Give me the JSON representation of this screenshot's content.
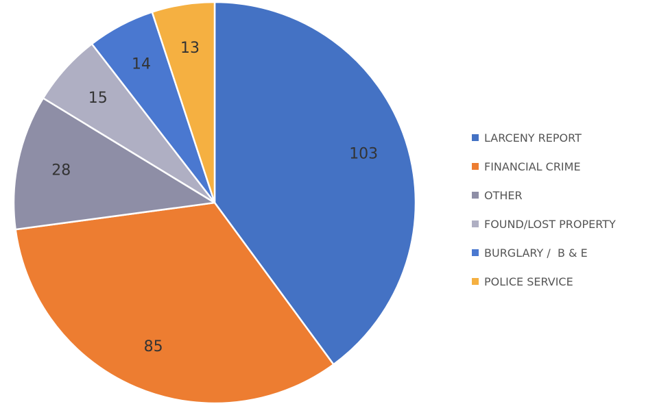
{
  "chart_data": {
    "type": "pie",
    "title": "",
    "legend_position": "right",
    "start_angle": "12 o'clock",
    "direction": "clockwise",
    "slices": [
      {
        "label": "LARCENY REPORT",
        "value": 103,
        "color": "#4472C4"
      },
      {
        "label": "FINANCIAL CRIME",
        "value": 85,
        "color": "#ED7D31"
      },
      {
        "label": "OTHER",
        "value": 28,
        "color": "#8E8EA6"
      },
      {
        "label": "FOUND/LOST PROPERTY",
        "value": 15,
        "color": "#AFAFC3"
      },
      {
        "label": "BURGLARY /  B & E",
        "value": 14,
        "color": "#4A78D0"
      },
      {
        "label": "POLICE SERVICE",
        "value": 13,
        "color": "#F5B041"
      }
    ]
  }
}
